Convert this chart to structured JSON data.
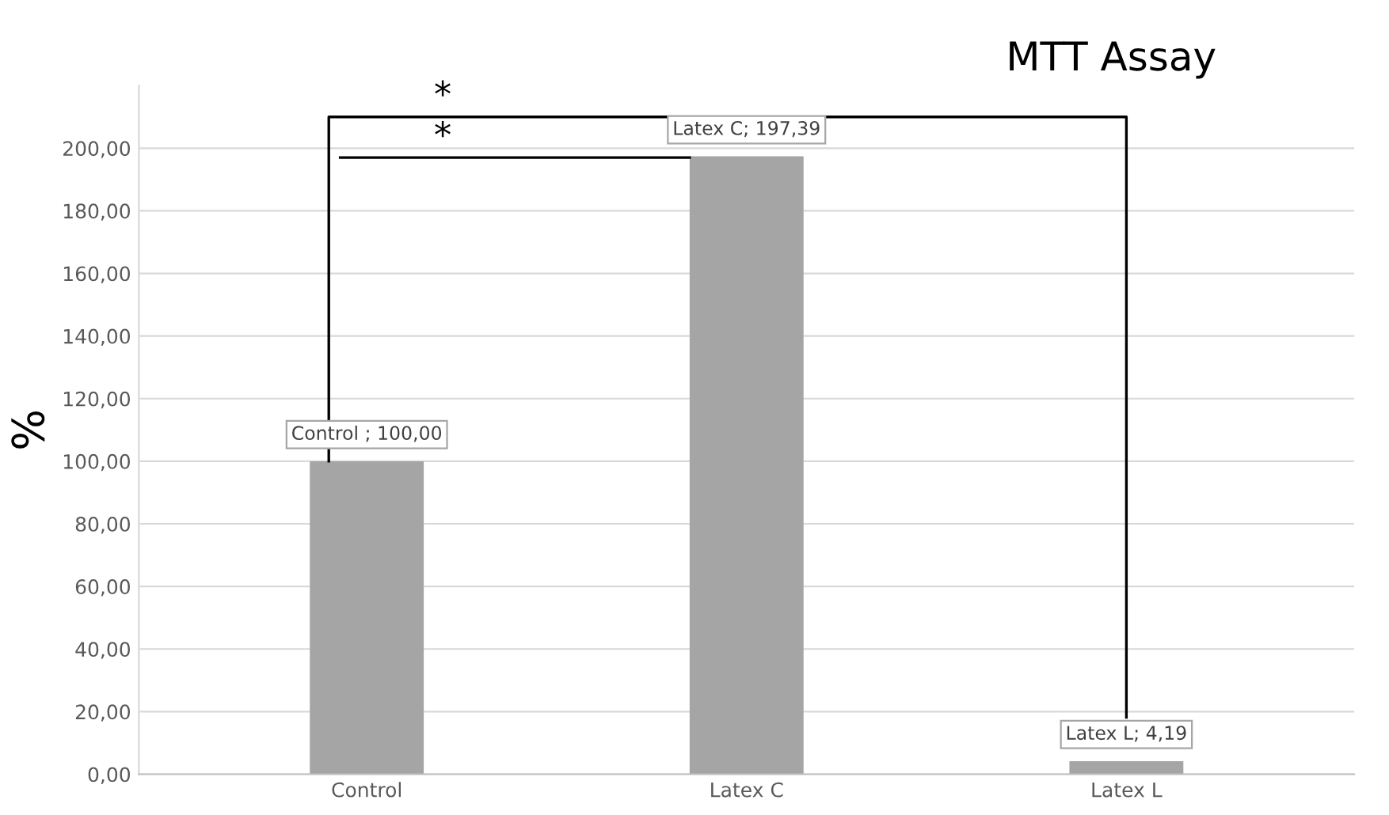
{
  "chart_data": {
    "type": "bar",
    "title": "MTT Assay",
    "ylabel": "%",
    "categories": [
      "Control",
      "Latex C",
      "Latex L"
    ],
    "values": [
      100.0,
      197.39,
      4.19
    ],
    "color": "#a5a5a5",
    "value_labels": [
      "Control ; 100,00",
      "Latex C; 197,39",
      "Latex L; 4,19"
    ],
    "ylim": [
      0,
      220
    ],
    "yticks": [
      {
        "value": 0,
        "label": "0,00"
      },
      {
        "value": 20,
        "label": "20,00"
      },
      {
        "value": 40,
        "label": "40,00"
      },
      {
        "value": 60,
        "label": "60,00"
      },
      {
        "value": 80,
        "label": "80,00"
      },
      {
        "value": 100,
        "label": "100,00"
      },
      {
        "value": 120,
        "label": "120,00"
      },
      {
        "value": 140,
        "label": "140,00"
      },
      {
        "value": 160,
        "label": "160,00"
      },
      {
        "value": 180,
        "label": "180,00"
      },
      {
        "value": 200,
        "label": "200,00"
      }
    ],
    "grid": "y",
    "annotations": [
      "*",
      "*"
    ]
  }
}
